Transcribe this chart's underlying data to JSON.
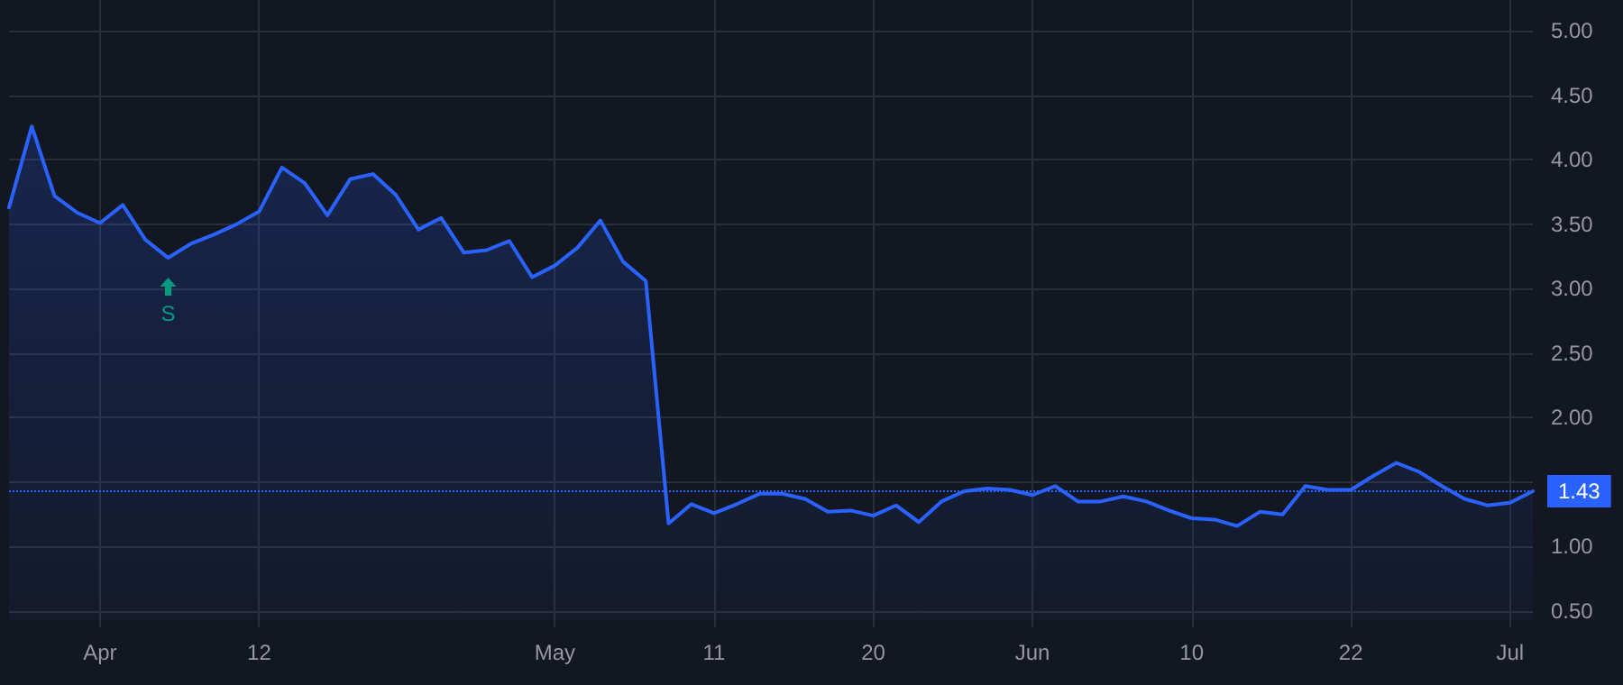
{
  "chart_data": {
    "type": "area",
    "categories": [
      null,
      null,
      null,
      null,
      "Apr",
      null,
      null,
      null,
      null,
      null,
      null,
      "12",
      null,
      null,
      null,
      null,
      null,
      null,
      null,
      null,
      null,
      null,
      null,
      null,
      "May",
      null,
      null,
      null,
      null,
      null,
      null,
      "11",
      null,
      null,
      null,
      null,
      null,
      null,
      "20",
      null,
      null,
      null,
      null,
      null,
      null,
      "Jun",
      null,
      null,
      null,
      null,
      null,
      null,
      "10",
      null,
      null,
      null,
      null,
      null,
      null,
      "22",
      null,
      null,
      null,
      null,
      null,
      null,
      "Jul",
      null
    ],
    "series": [
      {
        "color": "#2962ff",
        "values": [
          3.63,
          4.26,
          3.72,
          3.59,
          3.51,
          3.65,
          3.38,
          3.24,
          3.35,
          3.42,
          3.5,
          3.6,
          3.94,
          3.82,
          3.57,
          3.85,
          3.89,
          3.73,
          3.46,
          3.55,
          3.28,
          3.3,
          3.37,
          3.09,
          3.18,
          3.32,
          3.53,
          3.21,
          3.06,
          1.18,
          1.33,
          1.26,
          1.33,
          1.41,
          1.41,
          1.37,
          1.27,
          1.28,
          1.24,
          1.32,
          1.19,
          1.35,
          1.43,
          1.45,
          1.44,
          1.4,
          1.47,
          1.35,
          1.35,
          1.39,
          1.35,
          1.28,
          1.22,
          1.21,
          1.16,
          1.27,
          1.25,
          1.47,
          1.44,
          1.44,
          1.55,
          1.65,
          1.58,
          1.47,
          1.37,
          1.32,
          1.34,
          1.43
        ]
      }
    ],
    "ylim": [
      0.43,
      5.24
    ],
    "yticks": [
      {
        "value": 0.5,
        "label": "0.50"
      },
      {
        "value": 1,
        "label": "1.00"
      },
      {
        "value": 1.5,
        "label": null
      },
      {
        "value": 2,
        "label": "2.00"
      },
      {
        "value": 2.5,
        "label": "2.50"
      },
      {
        "value": 3,
        "label": "3.00"
      },
      {
        "value": 3.5,
        "label": "3.50"
      },
      {
        "value": 4,
        "label": "4.00"
      },
      {
        "value": 4.5,
        "label": "4.50"
      },
      {
        "value": 5,
        "label": "5.00"
      }
    ],
    "annotations": [
      {
        "text": "S",
        "y": 3.24
      }
    ],
    "ref_lines": [
      {
        "axis": "y",
        "value": 1.43,
        "label": "1.43",
        "color": "#2962ff",
        "line_style": "dotted"
      }
    ],
    "grid": true,
    "marker": "none",
    "line_style": "solid"
  }
}
